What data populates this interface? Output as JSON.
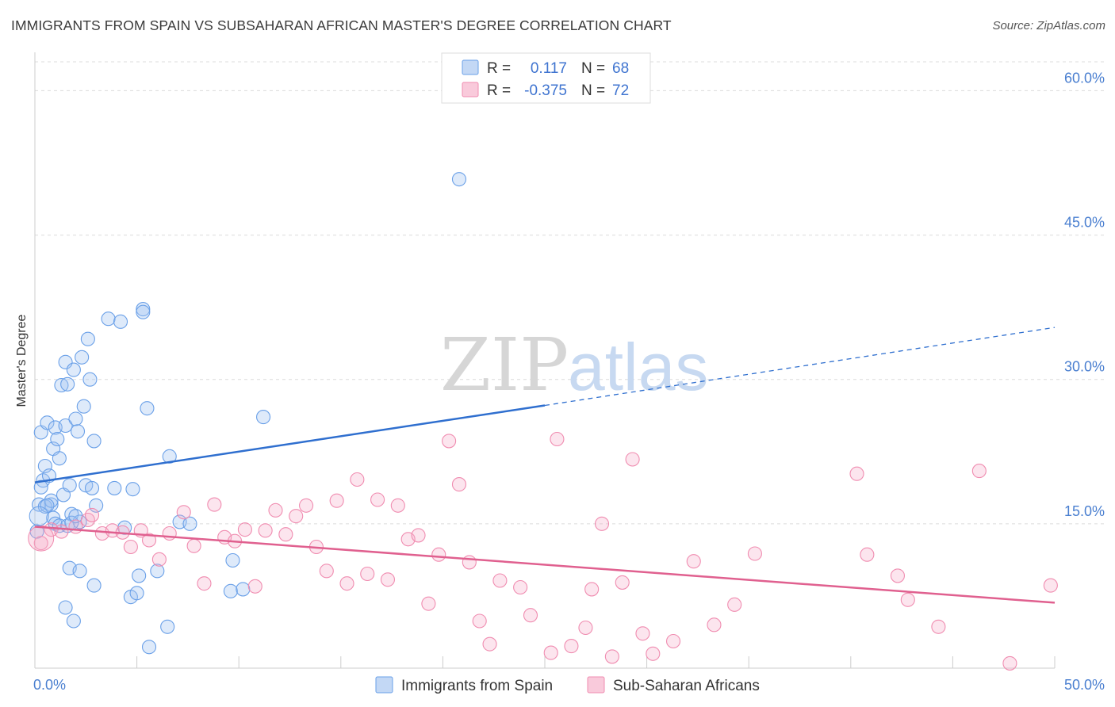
{
  "title": "IMMIGRANTS FROM SPAIN VS SUBSAHARAN AFRICAN MASTER'S DEGREE CORRELATION CHART",
  "source": "Source: ZipAtlas.com",
  "watermark": {
    "zip": "ZIP",
    "atlas": "atlas"
  },
  "chart_data": {
    "type": "scatter",
    "xlabel": "",
    "ylabel": "Master's Degree",
    "xlim": [
      0,
      50
    ],
    "ylim": [
      0,
      63
    ],
    "x_tick_labels": [
      {
        "value": 0,
        "label": "0.0%"
      },
      {
        "value": 50,
        "label": "50.0%"
      }
    ],
    "x_minor_ticks": [
      5,
      10,
      15,
      20,
      25,
      30,
      35,
      40,
      45,
      50
    ],
    "y_ticks": [
      {
        "value": 15,
        "label": "15.0%"
      },
      {
        "value": 30,
        "label": "30.0%"
      },
      {
        "value": 45,
        "label": "45.0%"
      },
      {
        "value": 60,
        "label": "60.0%"
      }
    ],
    "grid": "horizontal dashed",
    "legend": {
      "placement": "top-center",
      "rows": [
        {
          "r_label": "R =",
          "r_value": "0.117",
          "n_label": "N =",
          "n_value": "68",
          "color": "#6aa0e8"
        },
        {
          "r_label": "R =",
          "r_value": "-0.375",
          "n_label": "N =",
          "n_value": "72",
          "color": "#f08cb0"
        }
      ]
    },
    "series": [
      {
        "name": "Immigrants from Spain",
        "color": "#6aa0e8",
        "line_color": "#2f6fcf",
        "trend": {
          "x0": 0,
          "y0": 19.3,
          "x1": 25,
          "y1": 27.3,
          "dashed_to_x": 50,
          "dashed_to_y": 35.4
        },
        "points": [
          [
            0.3,
            24.5
          ],
          [
            0.4,
            19.5
          ],
          [
            0.5,
            21.0
          ],
          [
            0.6,
            25.5
          ],
          [
            0.7,
            20.0
          ],
          [
            0.8,
            17.0
          ],
          [
            0.9,
            22.8
          ],
          [
            1.0,
            25.0
          ],
          [
            1.1,
            23.8
          ],
          [
            1.2,
            21.8
          ],
          [
            1.3,
            29.4
          ],
          [
            1.4,
            18.0
          ],
          [
            1.5,
            25.2
          ],
          [
            1.5,
            31.8
          ],
          [
            1.6,
            29.5
          ],
          [
            1.7,
            19.0
          ],
          [
            1.8,
            16.0
          ],
          [
            1.9,
            31.0
          ],
          [
            2.0,
            25.9
          ],
          [
            2.1,
            24.6
          ],
          [
            2.2,
            15.2
          ],
          [
            2.3,
            32.3
          ],
          [
            2.4,
            27.2
          ],
          [
            2.5,
            19.0
          ],
          [
            2.6,
            34.2
          ],
          [
            2.7,
            30.0
          ],
          [
            2.8,
            18.7
          ],
          [
            2.9,
            23.6
          ],
          [
            3.0,
            16.9
          ],
          [
            3.6,
            36.3
          ],
          [
            3.9,
            18.7
          ],
          [
            4.2,
            36.0
          ],
          [
            4.8,
            18.6
          ],
          [
            5.3,
            37.3
          ],
          [
            5.3,
            37.0
          ],
          [
            5.5,
            27.0
          ],
          [
            6.6,
            22.0
          ],
          [
            7.1,
            15.2
          ],
          [
            0.2,
            17.0
          ],
          [
            0.3,
            18.8
          ],
          [
            0.5,
            16.8
          ],
          [
            0.8,
            17.4
          ],
          [
            0.9,
            15.6
          ],
          [
            1.0,
            15.0
          ],
          [
            1.2,
            14.8
          ],
          [
            1.6,
            14.8
          ],
          [
            1.8,
            15.1
          ],
          [
            2.0,
            15.8
          ],
          [
            1.7,
            10.4
          ],
          [
            2.2,
            10.1
          ],
          [
            2.9,
            8.6
          ],
          [
            4.7,
            7.4
          ],
          [
            5.0,
            7.8
          ],
          [
            5.1,
            9.6
          ],
          [
            6.0,
            10.1
          ],
          [
            6.5,
            4.3
          ],
          [
            5.6,
            2.2
          ],
          [
            1.5,
            6.3
          ],
          [
            1.9,
            4.9
          ],
          [
            9.7,
            11.2
          ],
          [
            9.6,
            8.0
          ],
          [
            10.2,
            8.2
          ],
          [
            11.2,
            26.1
          ],
          [
            20.8,
            50.8
          ],
          [
            0.6,
            16.9
          ],
          [
            4.4,
            14.6
          ],
          [
            7.6,
            15.0
          ],
          [
            0.1,
            14.2
          ]
        ]
      },
      {
        "name": "Sub-Saharan Africans",
        "color": "#f08cb0",
        "line_color": "#e0608f",
        "trend": {
          "x0": 0,
          "y0": 14.7,
          "x1": 50,
          "y1": 6.8
        },
        "points": [
          [
            0.3,
            13.0
          ],
          [
            0.8,
            14.4
          ],
          [
            1.3,
            14.2
          ],
          [
            2.0,
            14.7
          ],
          [
            2.6,
            15.4
          ],
          [
            2.8,
            15.9
          ],
          [
            3.3,
            14.0
          ],
          [
            3.8,
            14.3
          ],
          [
            4.3,
            14.1
          ],
          [
            4.7,
            12.6
          ],
          [
            5.2,
            14.3
          ],
          [
            5.6,
            13.3
          ],
          [
            6.1,
            11.3
          ],
          [
            6.6,
            14.0
          ],
          [
            7.3,
            16.2
          ],
          [
            7.8,
            12.7
          ],
          [
            8.3,
            8.8
          ],
          [
            8.8,
            17.0
          ],
          [
            9.3,
            13.6
          ],
          [
            9.8,
            13.2
          ],
          [
            10.3,
            14.4
          ],
          [
            10.8,
            8.5
          ],
          [
            11.3,
            14.3
          ],
          [
            11.8,
            16.4
          ],
          [
            12.3,
            13.9
          ],
          [
            12.8,
            15.8
          ],
          [
            13.3,
            16.9
          ],
          [
            13.8,
            12.6
          ],
          [
            14.3,
            10.1
          ],
          [
            14.8,
            17.4
          ],
          [
            15.3,
            8.8
          ],
          [
            15.8,
            19.6
          ],
          [
            16.3,
            9.8
          ],
          [
            16.8,
            17.5
          ],
          [
            17.3,
            9.2
          ],
          [
            17.8,
            16.9
          ],
          [
            18.3,
            13.4
          ],
          [
            18.8,
            13.8
          ],
          [
            19.3,
            6.7
          ],
          [
            19.8,
            11.8
          ],
          [
            20.3,
            23.6
          ],
          [
            20.8,
            19.1
          ],
          [
            21.3,
            11.0
          ],
          [
            21.8,
            4.9
          ],
          [
            22.3,
            2.5
          ],
          [
            22.8,
            9.1
          ],
          [
            23.8,
            8.4
          ],
          [
            24.3,
            5.5
          ],
          [
            25.3,
            1.6
          ],
          [
            25.6,
            23.8
          ],
          [
            26.3,
            2.3
          ],
          [
            27.3,
            8.2
          ],
          [
            27.8,
            15.0
          ],
          [
            28.3,
            1.2
          ],
          [
            28.8,
            8.9
          ],
          [
            29.3,
            21.7
          ],
          [
            29.8,
            3.6
          ],
          [
            30.3,
            1.5
          ],
          [
            31.3,
            2.8
          ],
          [
            32.3,
            11.1
          ],
          [
            33.3,
            4.5
          ],
          [
            34.3,
            6.6
          ],
          [
            35.3,
            11.9
          ],
          [
            40.3,
            20.2
          ],
          [
            40.8,
            11.8
          ],
          [
            42.3,
            9.6
          ],
          [
            42.8,
            7.1
          ],
          [
            44.3,
            4.3
          ],
          [
            46.3,
            20.5
          ],
          [
            47.8,
            0.5
          ],
          [
            49.8,
            8.6
          ],
          [
            27.0,
            4.2
          ]
        ]
      }
    ]
  },
  "bottom_legend": [
    {
      "label": "Immigrants from Spain",
      "color": "#6aa0e8"
    },
    {
      "label": "Sub-Saharan Africans",
      "color": "#f08cb0"
    }
  ]
}
